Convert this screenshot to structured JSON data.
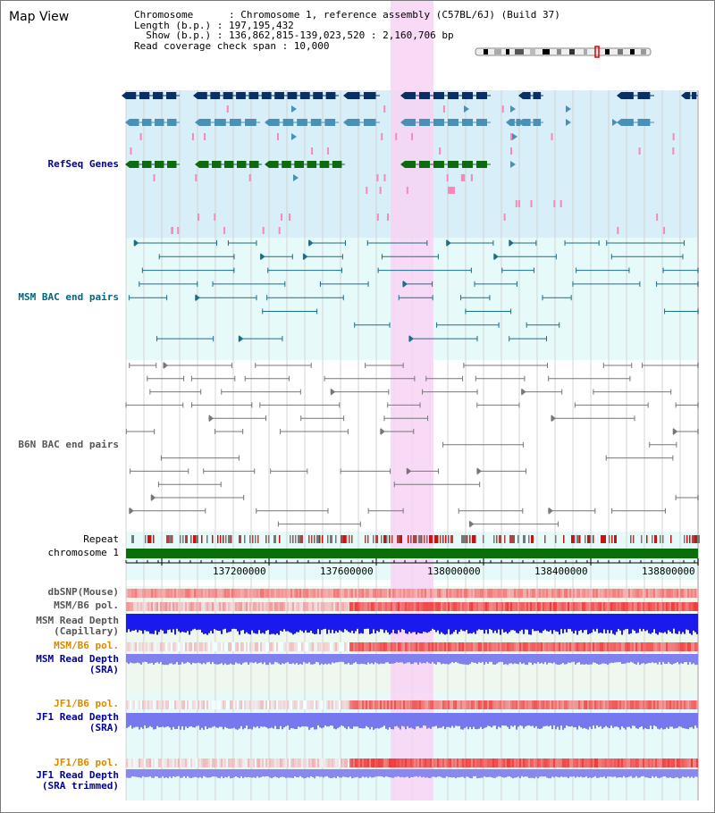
{
  "title": "Map View",
  "info": {
    "chromosome_label": "Chromosome      : Chromosome 1, reference assembly (C57BL/6J) (Build 37)",
    "length_label": "Length (b.p.) : 197,195,432",
    "show_label": "  Show (b.p.) : 136,862,815-139,023,520 : 2,160,706 bp",
    "coverage_label": "Read coverage check span : 10,000"
  },
  "colors": {
    "refseq_bg": "#d8eef9",
    "msm_bac_bg": "#e6fafa",
    "highlight": "#f8d4f4",
    "refseq_dark": "#0a2f66",
    "refseq_mid": "#4a8fb5",
    "refseq_green": "#0f6a0f",
    "msm_bac_line": "#1a6e8c",
    "b6n_bac_line": "#777777",
    "label_blue": "#000099",
    "label_teal": "#006680",
    "label_gray": "#555555",
    "label_orange": "#d98a00",
    "chromosome_bar": "#0a6e0a"
  },
  "tracks": {
    "refseq": "RefSeq Genes",
    "msm_bac": "MSM BAC end pairs",
    "b6n_bac": "B6N BAC end pairs",
    "repeat": "Repeat",
    "chromosome": "chromosome 1",
    "dbsnp": "dbSNP(Mouse)",
    "msm_b6_pol_1": "MSM/B6 pol.",
    "msm_read_depth_cap_1": "MSM Read Depth",
    "msm_read_depth_cap_2": "(Capillary)",
    "msm_b6_pol_2": "MSM/B6 pol.",
    "msm_read_depth_sra_1": "MSM Read Depth",
    "msm_read_depth_sra_2": "(SRA)",
    "jf1_b6_pol_1": "JF1/B6 pol.",
    "jf1_read_depth_sra_1": "JF1 Read Depth",
    "jf1_read_depth_sra_2": "(SRA)",
    "jf1_b6_pol_2": "JF1/B6 pol.",
    "jf1_read_depth_trim_1": "JF1 Read Depth",
    "jf1_read_depth_trim_2": "(SRA trimmed)"
  },
  "axis": {
    "ticks": [
      "137200000",
      "137600000",
      "138000000",
      "138400000",
      "138800000"
    ]
  }
}
